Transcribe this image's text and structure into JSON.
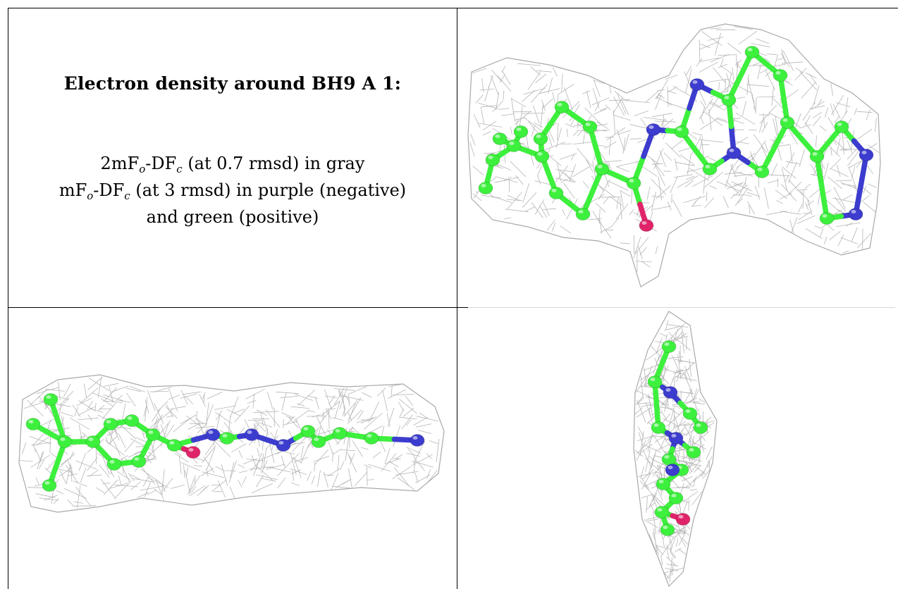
{
  "caption": {
    "title": "Electron density around BH9 A 1:",
    "line1": {
      "pre": "2mF",
      "sub1": "o",
      "mid": "-DF",
      "sub2": "c",
      "post": " (at 0.7 rmsd) in gray"
    },
    "line2": {
      "pre": "mF",
      "sub1": "o",
      "mid": "-DF",
      "sub2": "c",
      "post": " (at 3 rmsd) in purple (negative)"
    },
    "line3": "and green (positive)"
  },
  "colors": {
    "mesh": "#a9a9a9",
    "carbon": "#3df03d",
    "nitrogen": "#3c3ccf",
    "oxygen": "#e0246a"
  }
}
